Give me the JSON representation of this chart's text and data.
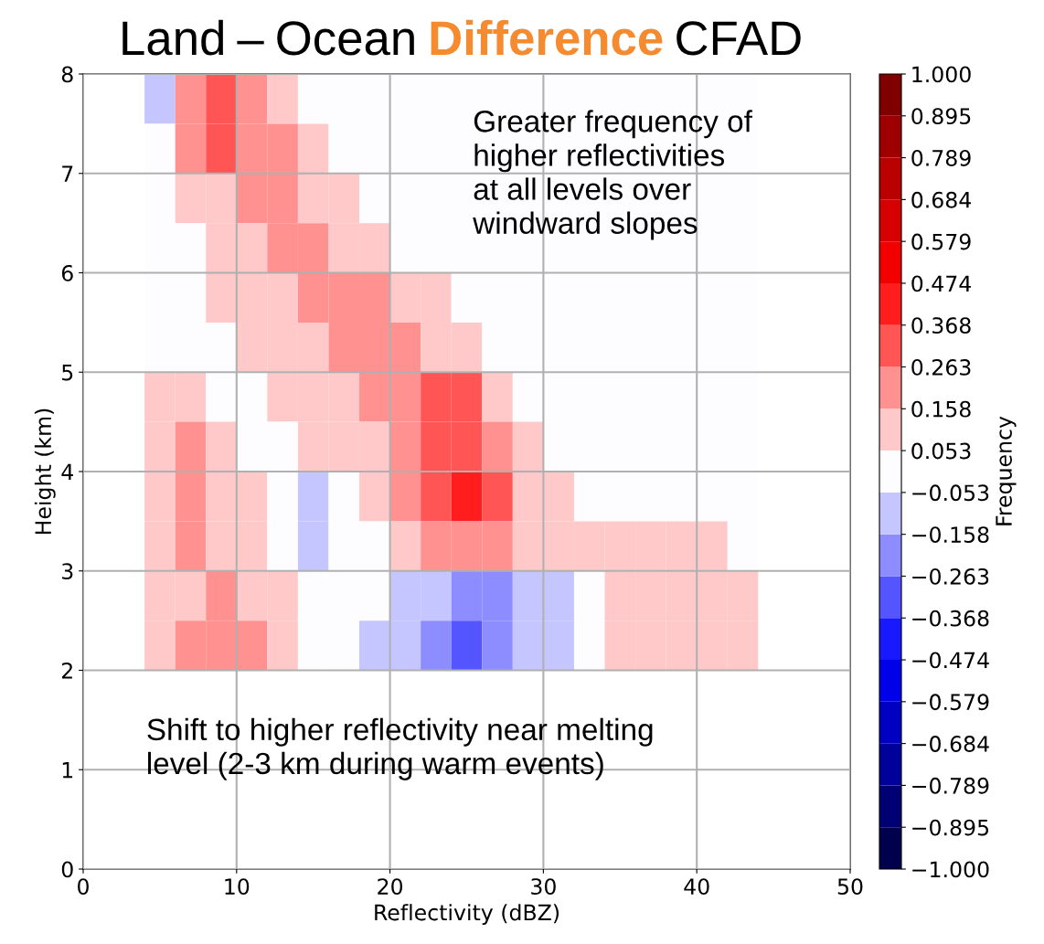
{
  "chart_data": {
    "type": "heatmap",
    "title": "Land – Ocean Difference CFAD",
    "xlabel": "Reflectivity (dBZ)",
    "ylabel": "Height (km)",
    "clabel": "Frequency",
    "x": [
      5,
      7,
      9,
      11,
      13,
      15,
      17,
      19,
      21,
      23,
      25,
      27,
      29,
      31,
      33,
      35,
      37,
      39,
      41,
      43
    ],
    "y": [
      7.75,
      7.25,
      6.75,
      6.25,
      5.75,
      5.25,
      4.75,
      4.25,
      3.75,
      3.25,
      2.75,
      2.25
    ],
    "cells": [
      [
        -0.1,
        0.2,
        0.3,
        0.2,
        0.1,
        0,
        0,
        0,
        0,
        0,
        0,
        0,
        0,
        0,
        0,
        0,
        0,
        0,
        0,
        0
      ],
      [
        0,
        0.2,
        0.3,
        0.2,
        0.2,
        0.1,
        0,
        0,
        0,
        0,
        0,
        0,
        0,
        0,
        0,
        0,
        0,
        0,
        0,
        0
      ],
      [
        0,
        0.1,
        0.1,
        0.2,
        0.2,
        0.1,
        0.1,
        0,
        0,
        0,
        0,
        0,
        0,
        0,
        0,
        0,
        0,
        0,
        0,
        0
      ],
      [
        0,
        0,
        0.1,
        0.1,
        0.2,
        0.2,
        0.1,
        0.1,
        0,
        0,
        0,
        0,
        0,
        0,
        0,
        0,
        0,
        0,
        0,
        0
      ],
      [
        0,
        0,
        0.1,
        0.1,
        0.1,
        0.2,
        0.2,
        0.2,
        0.1,
        0.1,
        0,
        0,
        0,
        0,
        0,
        0,
        0,
        0,
        0,
        0
      ],
      [
        0,
        0,
        0,
        0.1,
        0.1,
        0.1,
        0.2,
        0.2,
        0.2,
        0.1,
        0.1,
        0,
        0,
        0,
        0,
        0,
        0,
        0,
        0,
        0
      ],
      [
        0.1,
        0.1,
        0,
        0,
        0.1,
        0.1,
        0.1,
        0.2,
        0.2,
        0.3,
        0.3,
        0.1,
        0,
        0,
        0,
        0,
        0,
        0,
        0,
        0
      ],
      [
        0.1,
        0.2,
        0.1,
        0,
        0,
        0.1,
        0.1,
        0.1,
        0.2,
        0.3,
        0.3,
        0.2,
        0.1,
        0,
        0,
        0,
        0,
        0,
        0,
        0
      ],
      [
        0.1,
        0.2,
        0.1,
        0.1,
        0,
        -0.1,
        0,
        0.1,
        0.2,
        0.3,
        0.4,
        0.3,
        0.1,
        0.1,
        0,
        0,
        0,
        0,
        0,
        0
      ],
      [
        0.1,
        0.2,
        0.1,
        0.1,
        0,
        -0.1,
        0,
        0,
        0.1,
        0.2,
        0.2,
        0.2,
        0.1,
        0.1,
        0.1,
        0.1,
        0.1,
        0.1,
        0.1,
        0
      ],
      [
        0.1,
        0.1,
        0.2,
        0.1,
        0.1,
        0,
        0,
        0,
        -0.1,
        -0.1,
        -0.2,
        -0.2,
        -0.1,
        -0.1,
        0,
        0.1,
        0.1,
        0.1,
        0.1,
        0.1
      ],
      [
        0.1,
        0.2,
        0.2,
        0.2,
        0.1,
        0,
        0,
        -0.1,
        -0.1,
        -0.2,
        -0.3,
        -0.2,
        -0.1,
        -0.1,
        0,
        0.1,
        0.1,
        0.1,
        0.1,
        0.1
      ]
    ],
    "xlim": [
      0,
      50
    ],
    "xticks": [
      0,
      10,
      20,
      30,
      40,
      50
    ],
    "ylim": [
      0,
      8
    ],
    "yticks": [
      0,
      1,
      2,
      3,
      4,
      5,
      6,
      7,
      8
    ],
    "grid": true,
    "clim": [
      -1,
      1
    ],
    "cticks": [
      {
        "value": -1,
        "label": "−1.000"
      },
      {
        "value": -0.895,
        "label": "−0.895"
      },
      {
        "value": -0.789,
        "label": "−0.789"
      },
      {
        "value": -0.684,
        "label": "−0.684"
      },
      {
        "value": -0.579,
        "label": "−0.579"
      },
      {
        "value": -0.474,
        "label": "−0.474"
      },
      {
        "value": -0.368,
        "label": "−0.368"
      },
      {
        "value": -0.263,
        "label": "−0.263"
      },
      {
        "value": -0.158,
        "label": "−0.158"
      },
      {
        "value": -0.053,
        "label": "−0.053"
      },
      {
        "value": 0.053,
        "label": "0.053"
      },
      {
        "value": 0.158,
        "label": "0.158"
      },
      {
        "value": 0.263,
        "label": "0.263"
      },
      {
        "value": 0.368,
        "label": "0.368"
      },
      {
        "value": 0.474,
        "label": "0.474"
      },
      {
        "value": 0.579,
        "label": "0.579"
      },
      {
        "value": 0.684,
        "label": "0.684"
      },
      {
        "value": 0.789,
        "label": "0.789"
      },
      {
        "value": 0.895,
        "label": "0.895"
      },
      {
        "value": 1,
        "label": "1.000"
      }
    ],
    "annotations": [
      "Greater frequency of\nhigher reflectivities\nat all levels over\nwindward slopes",
      "Shift to higher reflectivity near melting\nlevel (2-3 km during warm events)"
    ]
  }
}
